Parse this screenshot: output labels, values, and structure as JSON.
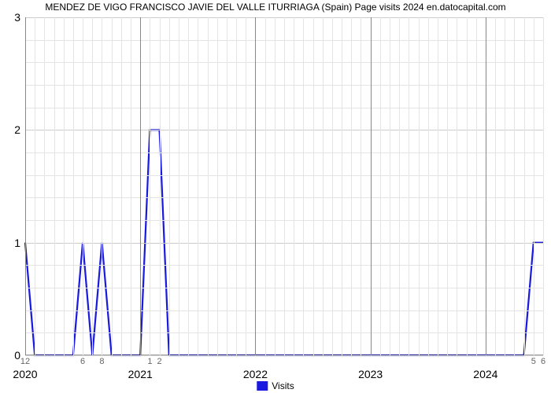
{
  "title": "MENDEZ DE VIGO FRANCISCO JAVIE DEL VALLE ITURRIAGA (Spain) Page visits 2024 en.datocapital.com",
  "chart": {
    "type": "line",
    "background_color": "#ffffff",
    "grid_color": "#cccccc",
    "grid_color_major": "#888888",
    "line_color": "#1919e0",
    "line_width": 2.2,
    "yaxis": {
      "min": 0,
      "max": 3,
      "ticks": [
        0,
        1,
        2,
        3
      ],
      "label_fontsize": 14,
      "minor_tick_count": 4
    },
    "xaxis": {
      "years": [
        "2020",
        "2021",
        "2022",
        "2023",
        "2024"
      ],
      "year_positions": [
        0,
        12,
        24,
        36,
        48
      ],
      "total_months": 54,
      "minor_labels": [
        {
          "pos": 0,
          "label": "12"
        },
        {
          "pos": 6,
          "label": "6"
        },
        {
          "pos": 8,
          "label": "8"
        },
        {
          "pos": 13,
          "label": "1"
        },
        {
          "pos": 14,
          "label": "2"
        },
        {
          "pos": 53,
          "label": "5"
        },
        {
          "pos": 54,
          "label": "6"
        }
      ],
      "minor_tick_count_per_year": 12
    },
    "data": {
      "x": [
        0,
        1,
        2,
        3,
        4,
        5,
        6,
        7,
        8,
        9,
        10,
        11,
        12,
        13,
        14,
        15,
        16,
        17,
        18,
        19,
        20,
        21,
        22,
        23,
        24,
        25,
        26,
        27,
        28,
        29,
        30,
        31,
        32,
        33,
        34,
        35,
        36,
        37,
        38,
        39,
        40,
        41,
        42,
        43,
        44,
        45,
        46,
        47,
        48,
        49,
        50,
        51,
        52,
        53,
        54
      ],
      "y": [
        1,
        0,
        0,
        0,
        0,
        0,
        1,
        0,
        1,
        0,
        0,
        0,
        0,
        2,
        2,
        0,
        0,
        0,
        0,
        0,
        0,
        0,
        0,
        0,
        0,
        0,
        0,
        0,
        0,
        0,
        0,
        0,
        0,
        0,
        0,
        0,
        0,
        0,
        0,
        0,
        0,
        0,
        0,
        0,
        0,
        0,
        0,
        0,
        0,
        0,
        0,
        0,
        0,
        1,
        1
      ]
    }
  },
  "legend": {
    "label": "Visits",
    "swatch_color": "#1919e0"
  }
}
